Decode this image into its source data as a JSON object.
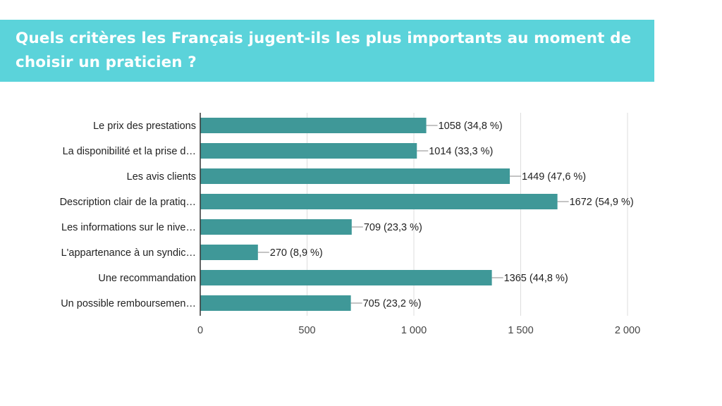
{
  "header": {
    "title": "Quels critères les Français jugent-ils les plus importants au moment de choisir un praticien ?"
  },
  "colors": {
    "banner": "#5bd3da",
    "bar": "#3f9898",
    "grid": "#dddddd",
    "axis": "#333333",
    "leader": "#888888"
  },
  "chart_data": {
    "type": "bar",
    "orientation": "horizontal",
    "title": "",
    "xlabel": "",
    "ylabel": "",
    "categories": [
      "Le prix des prestations",
      "La disponibilité et la prise d…",
      "Les avis clients",
      "Description clair de la pratiq…",
      "Les informations sur le nive…",
      "L'appartenance à un syndic…",
      "Une recommandation",
      "Un possible remboursemen…"
    ],
    "values": [
      1058,
      1014,
      1449,
      1672,
      709,
      270,
      1365,
      705
    ],
    "value_labels": [
      "1058 (34,8 %)",
      "1014 (33,3 %)",
      "1449 (47,6 %)",
      "1672 (54,9 %)",
      "709 (23,3 %)",
      "270 (8,9 %)",
      "1365 (44,8 %)",
      "705 (23,2 %)"
    ],
    "xlim": [
      0,
      2000
    ],
    "xticks": [
      0,
      500,
      1000,
      1500,
      2000
    ],
    "xtick_labels": [
      "0",
      "500",
      "1 000",
      "1 500",
      "2 000"
    ],
    "grid": true
  }
}
